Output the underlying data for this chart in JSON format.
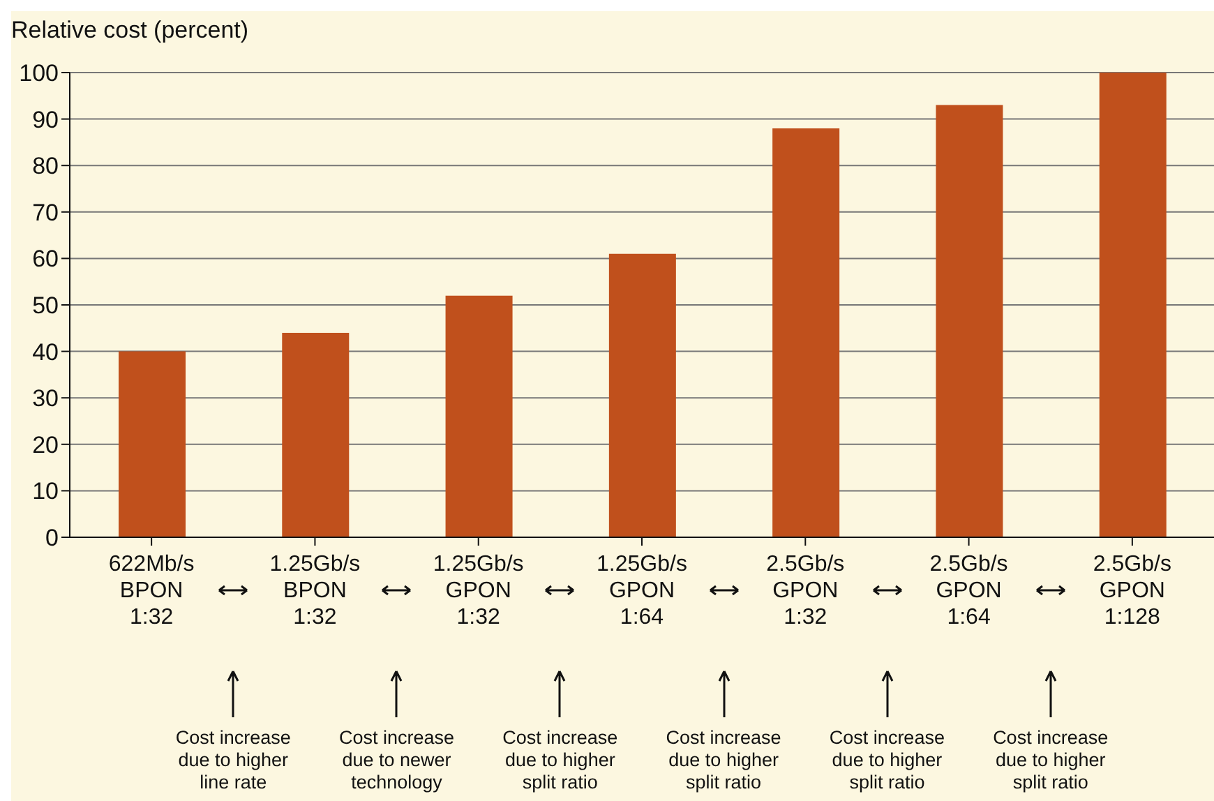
{
  "chart_data": {
    "type": "bar",
    "ylabel": "Relative cost (percent)",
    "categories": [
      "622Mb/s\nBPON\n1:32",
      "1.25Gb/s\nBPON\n1:32",
      "1.25Gb/s\nGPON\n1:32",
      "1.25Gb/s\nGPON\n1:64",
      "2.5Gb/s\nGPON\n1:32",
      "2.5Gb/s\nGPON\n1:64",
      "2.5Gb/s\nGPON\n1:128"
    ],
    "values": [
      40,
      44,
      52,
      61,
      88,
      93,
      100
    ],
    "color": "#c0501c",
    "ylim": [
      0,
      100
    ],
    "yticks": [
      0,
      10,
      20,
      30,
      40,
      50,
      60,
      70,
      80,
      90,
      100
    ],
    "grid": "y",
    "annotations": [
      "Cost increase\ndue to higher\nline rate",
      "Cost increase\ndue to newer\ntechnology",
      "Cost increase\ndue to higher\nsplit ratio",
      "Cost increase\ndue to higher\nsplit ratio",
      "Cost increase\ndue to higher\nsplit ratio",
      "Cost increase\ndue to higher\nsplit ratio"
    ]
  }
}
